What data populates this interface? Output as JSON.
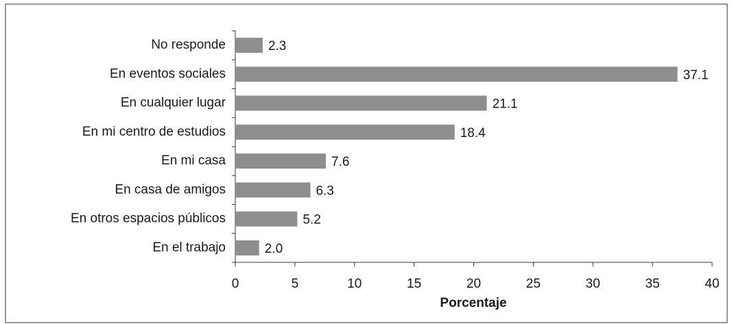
{
  "chart_data": {
    "type": "bar",
    "orientation": "horizontal",
    "categories": [
      "No responde",
      "En eventos sociales",
      "En cualquier lugar",
      "En mi centro de estudios",
      "En mi casa",
      "En casa de amigos",
      "En otros espacios públicos",
      "En el trabajo"
    ],
    "values": [
      2.3,
      37.1,
      21.1,
      18.4,
      7.6,
      6.3,
      5.2,
      2.0
    ],
    "value_labels": [
      "2.3",
      "37.1",
      "21.1",
      "18.4",
      "7.6",
      "6.3",
      "5.2",
      "2.0"
    ],
    "color": "#8e8e8e",
    "xlabel": "Porcentaje",
    "xlim": [
      0,
      40
    ],
    "xticks": [
      0,
      5,
      10,
      15,
      20,
      25,
      30,
      35,
      40
    ],
    "grid": false
  }
}
